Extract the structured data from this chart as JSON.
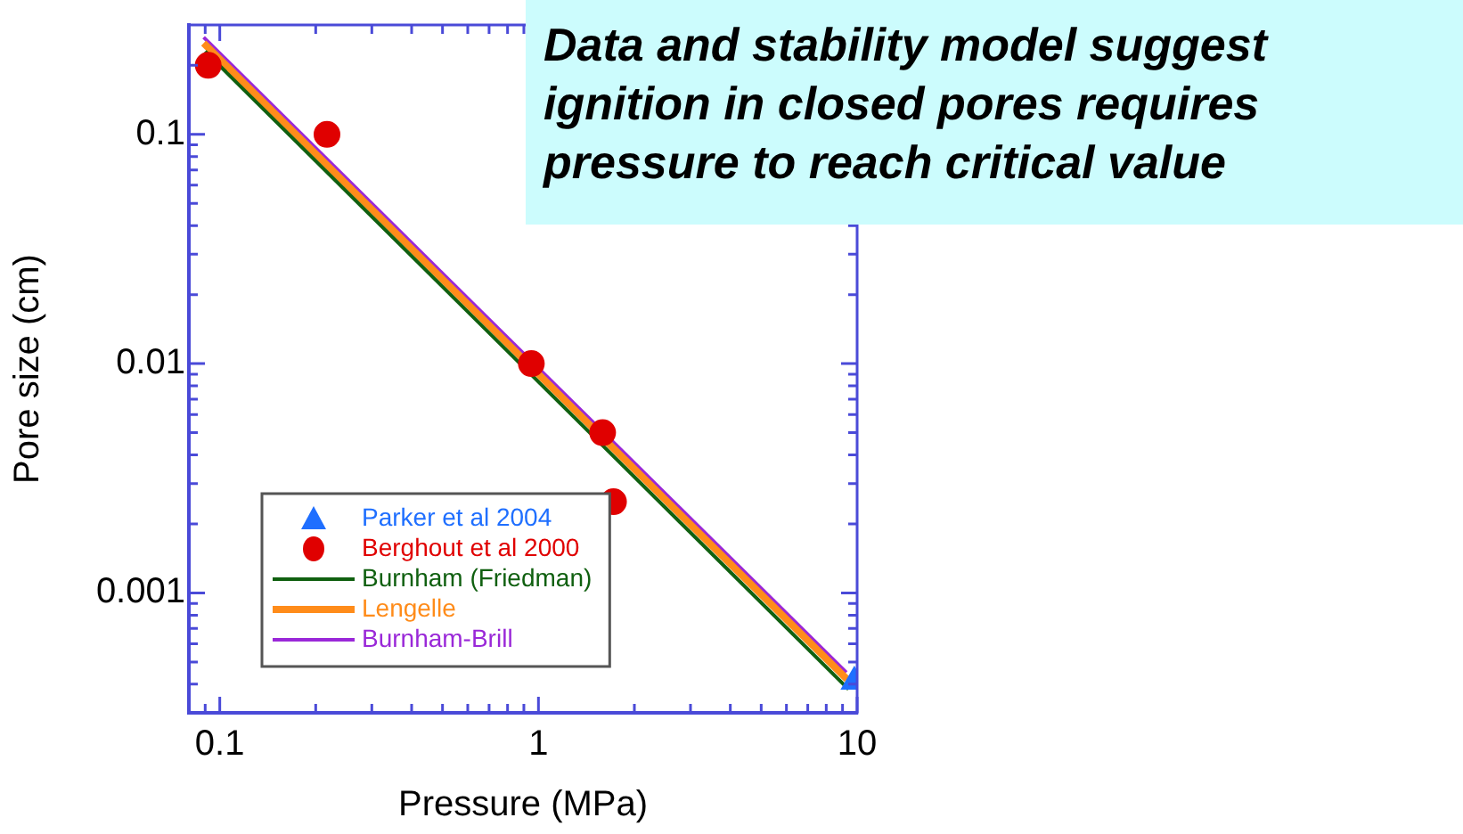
{
  "chart_data": {
    "type": "scatter",
    "xlabel": "Pressure (MPa)",
    "ylabel": "Pore size (cm)",
    "log": "xy",
    "grid": false,
    "legend": "bottom left",
    "xlim": [
      0.08,
      10
    ],
    "ylim": [
      0.0003,
      0.3
    ],
    "xticks": [
      {
        "value": 0.09,
        "label": null
      },
      0.1,
      {
        "value": 0.2,
        "label": null
      },
      {
        "value": 0.3,
        "label": null
      },
      {
        "value": 0.4,
        "label": null
      },
      {
        "value": 0.5,
        "label": null
      },
      {
        "value": 0.6,
        "label": null
      },
      {
        "value": 0.7,
        "label": null
      },
      {
        "value": 0.8,
        "label": null
      },
      {
        "value": 0.9,
        "label": null
      },
      1,
      {
        "value": 2,
        "label": null
      },
      {
        "value": 3,
        "label": null
      },
      {
        "value": 4,
        "label": null
      },
      {
        "value": 5,
        "label": null
      },
      {
        "value": 6,
        "label": null
      },
      {
        "value": 7,
        "label": null
      },
      {
        "value": 8,
        "label": null
      },
      {
        "value": 9,
        "label": null
      },
      10
    ],
    "yticks": [
      {
        "value": 0.0004,
        "label": null
      },
      {
        "value": 0.0005,
        "label": null
      },
      {
        "value": 0.0006,
        "label": null
      },
      {
        "value": 0.0007,
        "label": null
      },
      {
        "value": 0.0008,
        "label": null
      },
      {
        "value": 0.0009,
        "label": null
      },
      0.001,
      {
        "value": 0.002,
        "label": null
      },
      {
        "value": 0.003,
        "label": null
      },
      {
        "value": 0.004,
        "label": null
      },
      {
        "value": 0.005,
        "label": null
      },
      {
        "value": 0.006,
        "label": null
      },
      {
        "value": 0.007,
        "label": null
      },
      {
        "value": 0.008,
        "label": null
      },
      {
        "value": 0.009,
        "label": null
      },
      0.01,
      {
        "value": 0.02,
        "label": null
      },
      {
        "value": 0.03,
        "label": null
      },
      {
        "value": 0.04,
        "label": null
      },
      {
        "value": 0.05,
        "label": null
      },
      {
        "value": 0.06,
        "label": null
      },
      {
        "value": 0.07,
        "label": null
      },
      {
        "value": 0.08,
        "label": null
      },
      {
        "value": 0.09,
        "label": null
      },
      0.1,
      {
        "value": 0.2,
        "label": null
      }
    ],
    "series": [
      {
        "name": "Parker et al 2004",
        "marker": "triangle",
        "color": "#1f6fff",
        "x": [
          9.8
        ],
        "values": [
          0.00041
        ]
      },
      {
        "name": "Berghout et al 2000",
        "marker": "circle",
        "color": "#e00000",
        "x": [
          0.092,
          0.217,
          0.95,
          1.59,
          1.72
        ],
        "values": [
          0.2,
          0.1,
          0.01,
          0.005,
          0.0025
        ]
      },
      {
        "name": "Burnham (Friedman)",
        "type": "line",
        "marker": "none",
        "color": "#106010",
        "x": [
          0.09,
          9.4
        ],
        "values": [
          0.23,
          0.00038
        ]
      },
      {
        "name": "Lengelle",
        "type": "line",
        "marker": "none",
        "color": "#ff8c1a",
        "x": [
          0.089,
          9.3
        ],
        "values": [
          0.25,
          0.00042
        ]
      },
      {
        "name": "Burnham-Brill",
        "type": "line",
        "marker": "none",
        "color": "#9a28d8",
        "x": [
          0.089,
          9.25
        ],
        "values": [
          0.265,
          0.00045
        ]
      }
    ],
    "annotations": [
      "Data and stability model suggest ignition in closed pores requires pressure to reach critical value"
    ]
  }
}
